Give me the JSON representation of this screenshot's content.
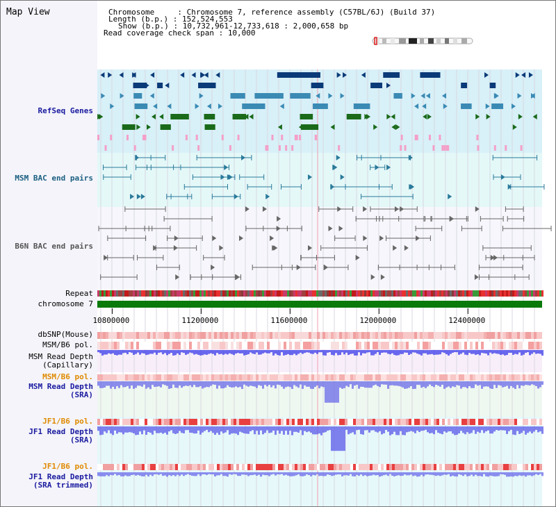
{
  "title": "Map View",
  "info": {
    "chromosome_key": "Chromosome     : ",
    "chromosome_val": "Chromosome 7, reference assembly (C57BL/6J) (Build 37)",
    "length_key": "Length (b.p.) : ",
    "length_val": "152,524,553",
    "show_key": "Show (b.p.) : ",
    "show_val": "10,732,961-12,733,618 : 2,000,658 bp",
    "span_key": "Read coverage check span : ",
    "span_val": "10,000"
  },
  "tracks": {
    "refseq": {
      "label": "RefSeq Genes",
      "color": "#1a1aa0"
    },
    "msm_bac": {
      "label": "MSM BAC end pairs",
      "color": "#1a5e80"
    },
    "b6n_bac": {
      "label": "B6N BAC end pairs",
      "color": "#555555"
    },
    "repeat": {
      "label": "Repeat"
    },
    "chrom": {
      "label": "chromosome 7"
    },
    "dbsnp": {
      "label": "dbSNP(Mouse)"
    },
    "msm_b6_pol_1": {
      "label": "MSM/B6 pol."
    },
    "msm_depth_cap": {
      "label": "MSM Read Depth\n(Capillary)"
    },
    "msm_b6_pol_2": {
      "label": "MSM/B6 pol.",
      "color": "#e08a00"
    },
    "msm_depth_sra": {
      "label": "MSM Read Depth\n(SRA)",
      "color": "#1a1aa0"
    },
    "jf1_b6_pol_1": {
      "label": "JF1/B6 pol.",
      "color": "#e08a00"
    },
    "jf1_depth_sra": {
      "label": "JF1 Read Depth\n(SRA)",
      "color": "#1a1aa0"
    },
    "jf1_b6_pol_2": {
      "label": "JF1/B6 pol.",
      "color": "#e08a00"
    },
    "jf1_depth_trim": {
      "label": "JF1 Read Depth\n(SRA trimmed)",
      "color": "#1a1aa0"
    }
  },
  "axis": {
    "ticks": [
      "10800000",
      "11200000",
      "11600000",
      "12000000",
      "12400000"
    ],
    "tick_values": [
      10800000,
      11200000,
      11600000,
      12000000,
      12400000
    ],
    "start": 10732961,
    "end": 12733618
  },
  "colors": {
    "refseq_bg": "#d8f0f8",
    "bac_bg": "#e4f8f8",
    "gene_dark": "#0a3a78",
    "gene_mid": "#3a8ab4",
    "gene_green": "#1a6a1a",
    "pink": "#f4a0c8",
    "chrom": "#0a7a0a",
    "depth": "#3a3ae8"
  }
}
